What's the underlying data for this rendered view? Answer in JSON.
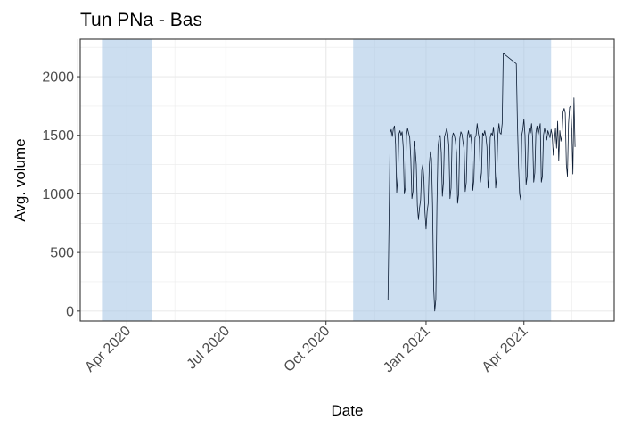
{
  "chart_data": {
    "type": "line",
    "title": "Tun PNa - Bas",
    "xlabel": "Date",
    "ylabel": "Avg. volume",
    "x_range": [
      "2020-02-18",
      "2021-06-23"
    ],
    "ylim": [
      -85,
      2320
    ],
    "grid": true,
    "legend": "none",
    "x_ticks": [
      {
        "date": "2020-04-01",
        "label": "Apr 2020"
      },
      {
        "date": "2020-07-01",
        "label": "Jul 2020"
      },
      {
        "date": "2020-10-01",
        "label": "Oct 2020"
      },
      {
        "date": "2021-01-01",
        "label": "Jan 2021"
      },
      {
        "date": "2021-04-01",
        "label": "Apr 2021"
      }
    ],
    "x_minor_ticks": [
      "2020-02-15",
      "2020-05-15",
      "2020-08-15",
      "2020-11-15",
      "2021-02-15",
      "2021-05-15"
    ],
    "y_ticks": [
      0,
      500,
      1000,
      1500,
      2000
    ],
    "y_minor_ticks": [
      250,
      750,
      1250,
      1750,
      2250
    ],
    "shaded_periods": [
      {
        "start": "2020-03-09",
        "end": "2020-04-24"
      },
      {
        "start": "2020-10-26",
        "end": "2021-04-26"
      }
    ],
    "colors": {
      "line": "#0b1b33",
      "shade": "#aac8e6",
      "grid": "#ebebeb",
      "panel_border": "#333333"
    },
    "series": [
      {
        "values": [
          [
            "2020-11-27",
            90
          ],
          [
            "2020-11-28",
            780
          ],
          [
            "2020-11-29",
            1520
          ],
          [
            "2020-11-30",
            1550
          ],
          [
            "2020-12-01",
            1490
          ],
          [
            "2020-12-02",
            1560
          ],
          [
            "2020-12-03",
            1580
          ],
          [
            "2020-12-04",
            1420
          ],
          [
            "2020-12-05",
            1010
          ],
          [
            "2020-12-06",
            1140
          ],
          [
            "2020-12-07",
            1510
          ],
          [
            "2020-12-08",
            1540
          ],
          [
            "2020-12-09",
            1500
          ],
          [
            "2020-12-10",
            1530
          ],
          [
            "2020-12-11",
            1400
          ],
          [
            "2020-12-12",
            1000
          ],
          [
            "2020-12-13",
            1050
          ],
          [
            "2020-12-14",
            1500
          ],
          [
            "2020-12-15",
            1560
          ],
          [
            "2020-12-16",
            1520
          ],
          [
            "2020-12-17",
            1480
          ],
          [
            "2020-12-18",
            1300
          ],
          [
            "2020-12-19",
            960
          ],
          [
            "2020-12-20",
            1020
          ],
          [
            "2020-12-21",
            1450
          ],
          [
            "2020-12-22",
            1380
          ],
          [
            "2020-12-23",
            1250
          ],
          [
            "2020-12-24",
            900
          ],
          [
            "2020-12-25",
            780
          ],
          [
            "2020-12-26",
            880
          ],
          [
            "2020-12-27",
            950
          ],
          [
            "2020-12-28",
            1200
          ],
          [
            "2020-12-29",
            1250
          ],
          [
            "2020-12-30",
            1130
          ],
          [
            "2020-12-31",
            840
          ],
          [
            "2021-01-01",
            700
          ],
          [
            "2021-01-02",
            850
          ],
          [
            "2021-01-03",
            920
          ],
          [
            "2021-01-04",
            1250
          ],
          [
            "2021-01-05",
            1360
          ],
          [
            "2021-01-06",
            1300
          ],
          [
            "2021-01-07",
            900
          ],
          [
            "2021-01-08",
            200
          ],
          [
            "2021-01-09",
            0
          ],
          [
            "2021-01-10",
            100
          ],
          [
            "2021-01-11",
            900
          ],
          [
            "2021-01-12",
            1400
          ],
          [
            "2021-01-13",
            1480
          ],
          [
            "2021-01-14",
            1500
          ],
          [
            "2021-01-15",
            1350
          ],
          [
            "2021-01-16",
            980
          ],
          [
            "2021-01-17",
            1100
          ],
          [
            "2021-01-18",
            1490
          ],
          [
            "2021-01-19",
            1520
          ],
          [
            "2021-01-20",
            1560
          ],
          [
            "2021-01-21",
            1510
          ],
          [
            "2021-01-22",
            1400
          ],
          [
            "2021-01-23",
            960
          ],
          [
            "2021-01-24",
            1050
          ],
          [
            "2021-01-25",
            1480
          ],
          [
            "2021-01-26",
            1520
          ],
          [
            "2021-01-27",
            1500
          ],
          [
            "2021-01-28",
            1450
          ],
          [
            "2021-01-29",
            1350
          ],
          [
            "2021-01-30",
            920
          ],
          [
            "2021-01-31",
            1000
          ],
          [
            "2021-02-01",
            1470
          ],
          [
            "2021-02-02",
            1530
          ],
          [
            "2021-02-03",
            1510
          ],
          [
            "2021-02-04",
            1440
          ],
          [
            "2021-02-05",
            1380
          ],
          [
            "2021-02-06",
            1020
          ],
          [
            "2021-02-07",
            1100
          ],
          [
            "2021-02-08",
            1490
          ],
          [
            "2021-02-09",
            1540
          ],
          [
            "2021-02-10",
            1480
          ],
          [
            "2021-02-11",
            1510
          ],
          [
            "2021-02-12",
            1420
          ],
          [
            "2021-02-13",
            1030
          ],
          [
            "2021-02-14",
            1120
          ],
          [
            "2021-02-15",
            1480
          ],
          [
            "2021-02-16",
            1500
          ],
          [
            "2021-02-17",
            1600
          ],
          [
            "2021-02-18",
            1520
          ],
          [
            "2021-02-19",
            1470
          ],
          [
            "2021-02-20",
            1100
          ],
          [
            "2021-02-21",
            1180
          ],
          [
            "2021-02-22",
            1520
          ],
          [
            "2021-02-23",
            1500
          ],
          [
            "2021-02-24",
            1540
          ],
          [
            "2021-02-25",
            1490
          ],
          [
            "2021-02-26",
            1400
          ],
          [
            "2021-02-27",
            1050
          ],
          [
            "2021-02-28",
            1150
          ],
          [
            "2021-03-01",
            1480
          ],
          [
            "2021-03-02",
            1520
          ],
          [
            "2021-03-03",
            1500
          ],
          [
            "2021-03-04",
            1570
          ],
          [
            "2021-03-05",
            1450
          ],
          [
            "2021-03-06",
            1050
          ],
          [
            "2021-03-07",
            1150
          ],
          [
            "2021-03-08",
            1500
          ],
          [
            "2021-03-09",
            1600
          ],
          [
            "2021-03-10",
            1520
          ],
          [
            "2021-03-11",
            1510
          ],
          [
            "2021-03-12",
            1600
          ],
          [
            "2021-03-13",
            2200
          ],
          [
            "2021-03-25",
            2110
          ],
          [
            "2021-03-26",
            1620
          ],
          [
            "2021-03-27",
            1250
          ],
          [
            "2021-03-28",
            1000
          ],
          [
            "2021-03-29",
            950
          ],
          [
            "2021-03-30",
            1500
          ],
          [
            "2021-03-31",
            1550
          ],
          [
            "2021-04-01",
            1640
          ],
          [
            "2021-04-02",
            1500
          ],
          [
            "2021-04-03",
            1080
          ],
          [
            "2021-04-04",
            1150
          ],
          [
            "2021-04-05",
            1500
          ],
          [
            "2021-04-06",
            1560
          ],
          [
            "2021-04-07",
            1520
          ],
          [
            "2021-04-08",
            1600
          ],
          [
            "2021-04-09",
            1480
          ],
          [
            "2021-04-10",
            1100
          ],
          [
            "2021-04-11",
            1180
          ],
          [
            "2021-04-12",
            1520
          ],
          [
            "2021-04-13",
            1580
          ],
          [
            "2021-04-14",
            1500
          ],
          [
            "2021-04-15",
            1550
          ],
          [
            "2021-04-16",
            1600
          ],
          [
            "2021-04-17",
            1100
          ],
          [
            "2021-04-18",
            1150
          ],
          [
            "2021-04-19",
            1500
          ],
          [
            "2021-04-20",
            1560
          ],
          [
            "2021-04-21",
            1520
          ],
          [
            "2021-04-22",
            1460
          ],
          [
            "2021-04-23",
            1540
          ],
          [
            "2021-04-24",
            1510
          ],
          [
            "2021-04-25",
            1480
          ],
          [
            "2021-04-26",
            1550
          ],
          [
            "2021-04-27",
            1500
          ],
          [
            "2021-04-28",
            1330
          ],
          [
            "2021-04-29",
            1450
          ],
          [
            "2021-04-30",
            1560
          ],
          [
            "2021-05-01",
            1390
          ],
          [
            "2021-05-02",
            1620
          ],
          [
            "2021-05-03",
            1280
          ],
          [
            "2021-05-04",
            1540
          ],
          [
            "2021-05-05",
            1450
          ],
          [
            "2021-05-06",
            1500
          ],
          [
            "2021-05-07",
            1700
          ],
          [
            "2021-05-08",
            1730
          ],
          [
            "2021-05-09",
            1690
          ],
          [
            "2021-05-10",
            1250
          ],
          [
            "2021-05-11",
            1150
          ],
          [
            "2021-05-12",
            1600
          ],
          [
            "2021-05-13",
            1740
          ],
          [
            "2021-05-14",
            1750
          ],
          [
            "2021-05-15",
            1550
          ],
          [
            "2021-05-16",
            1170
          ],
          [
            "2021-05-17",
            1820
          ],
          [
            "2021-05-18",
            1400
          ]
        ]
      }
    ]
  }
}
